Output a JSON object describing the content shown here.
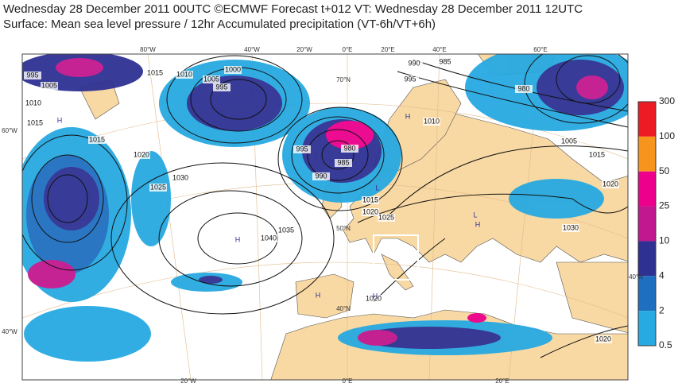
{
  "header": {
    "line1": "Wednesday 28 December 2011 00UTC ©ECMWF Forecast t+012 VT: Wednesday 28 December 2011 12UTC",
    "line2": "Surface: Mean sea level pressure / 12hr Accumulated precipitation (VT-6h/VT+6h)"
  },
  "legend": {
    "labels": [
      "300",
      "100",
      "50",
      "25",
      "10",
      "4",
      "2",
      "0.5"
    ],
    "colors": [
      "#ed1c24",
      "#f7941d",
      "#ec008c",
      "#c2188f",
      "#2e3192",
      "#1f6fc0",
      "#27a9e1"
    ]
  },
  "grid_labels": [
    "80°W",
    "40°W",
    "20°W",
    "0°E",
    "20°E",
    "40°E",
    "60°E",
    "70°N",
    "60°W",
    "50°N",
    "40°N",
    "40°N",
    "40°W",
    "20°W",
    "0°E",
    "20°E"
  ],
  "isobar_labels": [
    "995",
    "1005",
    "1010",
    "1015",
    "1015",
    "1010",
    "1005",
    "1000",
    "995",
    "1015",
    "1020",
    "1025",
    "1030",
    "1040",
    "1035",
    "995",
    "980",
    "990",
    "985",
    "1015",
    "1020",
    "1025",
    "990",
    "985",
    "995",
    "1010",
    "980",
    "1005",
    "1015",
    "1020",
    "1030",
    "1020",
    "1020"
  ],
  "pressure_centers": [
    "H",
    "H",
    "L",
    "H",
    "L",
    "H",
    "L",
    "H",
    "H"
  ]
}
